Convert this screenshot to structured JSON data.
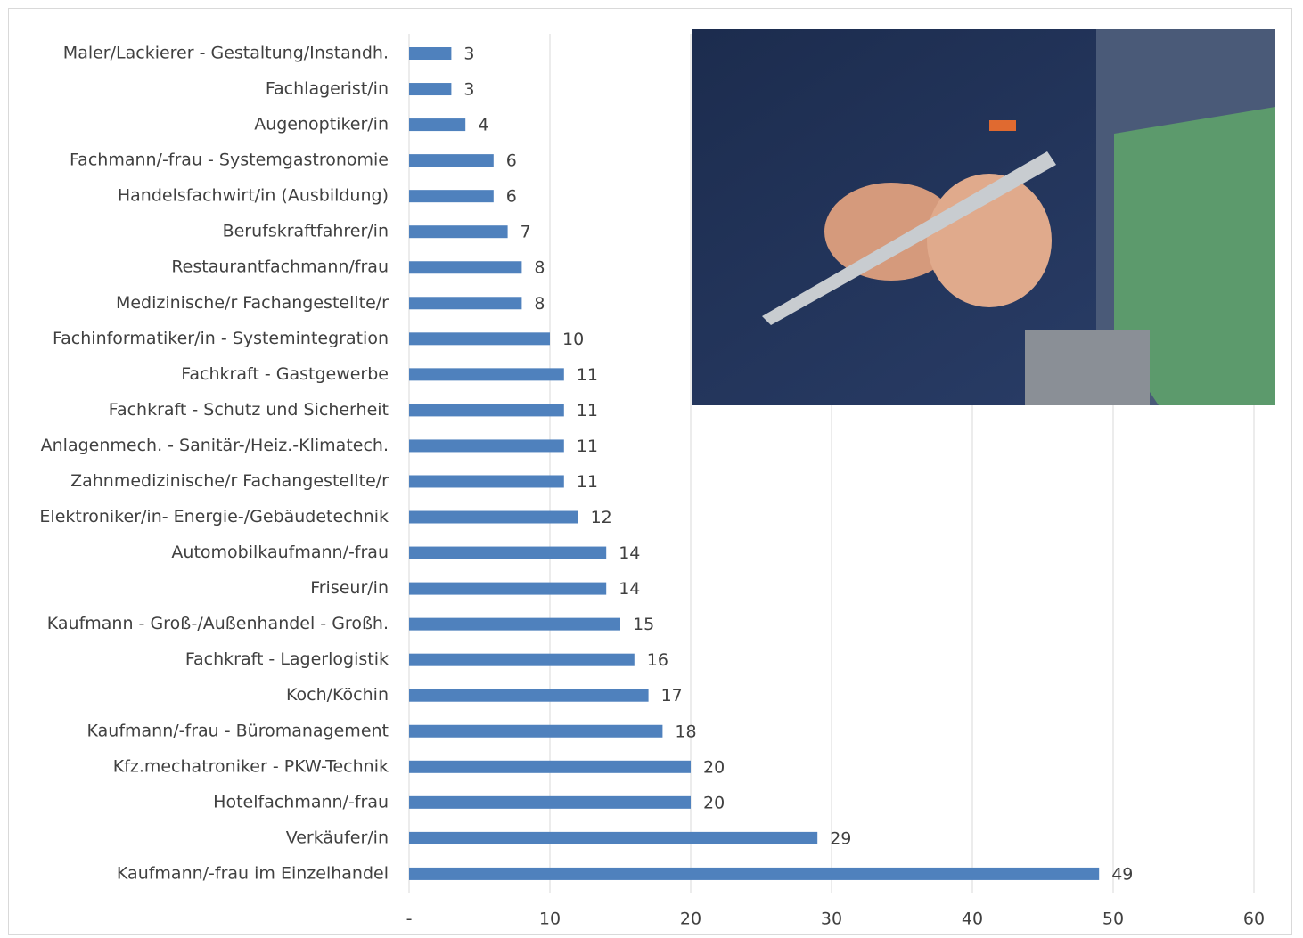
{
  "chart_data": {
    "type": "bar",
    "orientation": "horizontal",
    "categories": [
      "Maler/Lackierer - Gestaltung/Instandh.",
      "Fachlagerist/in",
      "Augenoptiker/in",
      "Fachmann/-frau - Systemgastronomie",
      "Handelsfachwirt/in (Ausbildung)",
      "Berufskraftfahrer/in",
      "Restaurantfachmann/frau",
      "Medizinische/r Fachangestellte/r",
      "Fachinformatiker/in - Systemintegration",
      "Fachkraft - Gastgewerbe",
      "Fachkraft - Schutz und Sicherheit",
      "Anlagenmech. - Sanitär-/Heiz.-Klimatech.",
      "Zahnmedizinische/r Fachangestellte/r",
      "Elektroniker/in- Energie-/Gebäudetechnik",
      "Automobilkaufmann/-frau",
      "Friseur/in",
      "Kaufmann - Groß-/Außenhandel - Großh.",
      "Fachkraft - Lagerlogistik",
      "Koch/Köchin",
      "Kaufmann/-frau - Büromanagement",
      "Kfz.mechatroniker - PKW-Technik",
      "Hotelfachmann/-frau",
      "Verkäufer/in",
      "Kaufmann/-frau im Einzelhandel"
    ],
    "values": [
      3,
      3,
      4,
      6,
      6,
      7,
      8,
      8,
      10,
      11,
      11,
      11,
      11,
      12,
      14,
      14,
      15,
      16,
      17,
      18,
      20,
      20,
      29,
      49
    ],
    "color": "#4f81bd",
    "xlim": [
      0,
      60
    ],
    "xticks": [
      {
        "value": 0,
        "label": "-"
      },
      10,
      20,
      30,
      40,
      50,
      60
    ],
    "grid": true
  }
}
